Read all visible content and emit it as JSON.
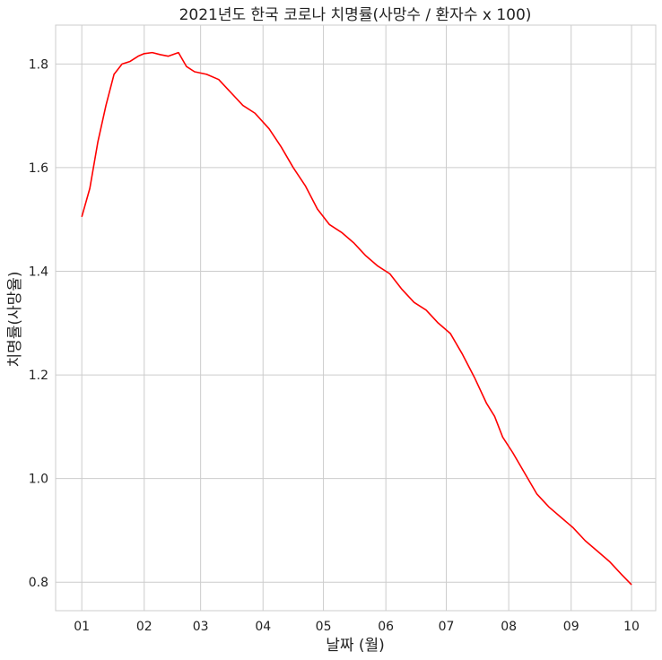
{
  "chart_data": {
    "type": "line",
    "title": "2021년도 한국 코로나 치명률(사망수 / 환자수 x 100)",
    "xlabel": "날짜 (월)",
    "ylabel": "치명률(사망율)",
    "x_ticks": [
      "01",
      "02",
      "03",
      "04",
      "05",
      "06",
      "07",
      "08",
      "09",
      "10"
    ],
    "y_ticks": [
      "0.8",
      "1.0",
      "1.2",
      "1.4",
      "1.6",
      "1.8"
    ],
    "xlim": [
      "2020-12-19",
      "2021-10-13"
    ],
    "ylim": [
      0.745,
      1.875
    ],
    "grid": true,
    "line_color": "#ff0000",
    "series": [
      {
        "x": [
          "2021-01-01",
          "2021-01-05",
          "2021-01-09",
          "2021-01-13",
          "2021-01-17",
          "2021-01-21",
          "2021-01-25",
          "2021-01-29",
          "2021-02-01",
          "2021-02-05",
          "2021-02-09",
          "2021-02-13",
          "2021-02-18",
          "2021-02-22",
          "2021-02-26",
          "2021-03-04",
          "2021-03-10",
          "2021-03-16",
          "2021-03-22",
          "2021-03-28",
          "2021-04-04",
          "2021-04-10",
          "2021-04-16",
          "2021-04-22",
          "2021-04-28",
          "2021-05-04",
          "2021-05-10",
          "2021-05-16",
          "2021-05-22",
          "2021-05-28",
          "2021-06-03",
          "2021-06-09",
          "2021-06-15",
          "2021-06-21",
          "2021-06-27",
          "2021-07-03",
          "2021-07-09",
          "2021-07-15",
          "2021-07-21",
          "2021-07-25",
          "2021-07-29",
          "2021-08-03",
          "2021-08-09",
          "2021-08-15",
          "2021-08-21",
          "2021-08-27",
          "2021-09-02",
          "2021-09-08",
          "2021-09-14",
          "2021-09-20",
          "2021-09-26",
          "2021-10-01"
        ],
        "y": [
          1.505,
          1.56,
          1.65,
          1.72,
          1.78,
          1.8,
          1.805,
          1.815,
          1.82,
          1.822,
          1.818,
          1.815,
          1.822,
          1.795,
          1.785,
          1.78,
          1.77,
          1.745,
          1.72,
          1.705,
          1.675,
          1.64,
          1.6,
          1.565,
          1.52,
          1.49,
          1.475,
          1.455,
          1.43,
          1.41,
          1.395,
          1.365,
          1.34,
          1.325,
          1.3,
          1.28,
          1.24,
          1.195,
          1.145,
          1.12,
          1.08,
          1.05,
          1.01,
          0.97,
          0.945,
          0.925,
          0.905,
          0.88,
          0.86,
          0.84,
          0.815,
          0.795
        ]
      }
    ]
  }
}
